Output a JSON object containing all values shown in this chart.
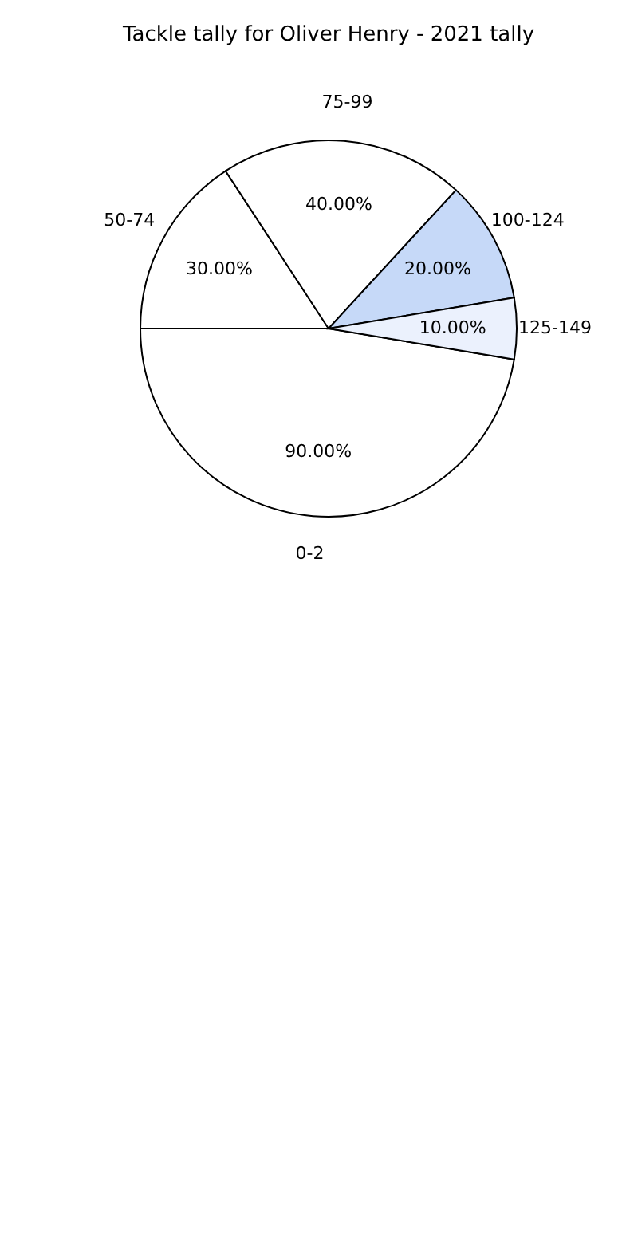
{
  "chart_data": {
    "type": "pie",
    "title": "Tackle tally for Oliver Henry - 2021 tally",
    "categories": [
      "0-2",
      "50-74",
      "75-99",
      "100-124",
      "125-149"
    ],
    "values": [
      90,
      30,
      40,
      20,
      10
    ],
    "value_labels": [
      "90.00%",
      "30.00%",
      "40.00%",
      "20.00%",
      "10.00%"
    ],
    "colors": [
      "#ffffff",
      "#ffffff",
      "#ffffff",
      "#c6d9f8",
      "#ebf1fd"
    ]
  }
}
